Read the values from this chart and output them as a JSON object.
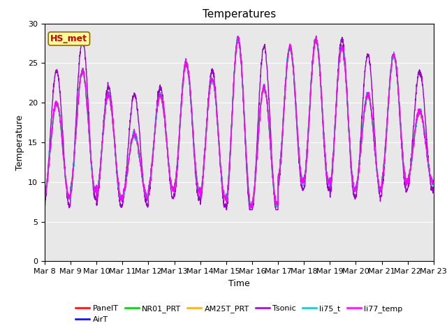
{
  "title": "Temperatures",
  "xlabel": "Time",
  "ylabel": "Temperature",
  "ylim": [
    0,
    30
  ],
  "yticks": [
    0,
    5,
    10,
    15,
    20,
    25,
    30
  ],
  "series_names": [
    "PanelT",
    "AirT",
    "NR01_PRT",
    "AM25T_PRT",
    "Tsonic",
    "li75_t",
    "li77_temp"
  ],
  "series_colors": [
    "#ff0000",
    "#0000ff",
    "#00cc00",
    "#ffaa00",
    "#9900cc",
    "#00cccc",
    "#ff00ff"
  ],
  "series_lw": [
    1.0,
    1.0,
    1.0,
    1.0,
    1.0,
    1.0,
    1.0
  ],
  "annotation_text": "HS_met",
  "annotation_color": "#cc0000",
  "annotation_bg": "#ffff99",
  "annotation_border": "#996600",
  "background_color": "#e8e8e8",
  "title_fontsize": 11,
  "axis_label_fontsize": 9,
  "tick_fontsize": 8,
  "legend_fontsize": 8,
  "n_days": 15,
  "samples_per_day": 144,
  "day_peaks": [
    20,
    24,
    21,
    16,
    21,
    25,
    23,
    28,
    22,
    27,
    28,
    27,
    21,
    26,
    19
  ],
  "day_troughs": [
    8,
    9,
    8,
    8,
    9,
    9,
    8,
    7,
    7,
    10,
    10,
    9,
    9,
    10,
    10
  ],
  "tsonic_extra": [
    4,
    4,
    1,
    5,
    1,
    0,
    1,
    0,
    5,
    0,
    0,
    1,
    5,
    0,
    5
  ]
}
